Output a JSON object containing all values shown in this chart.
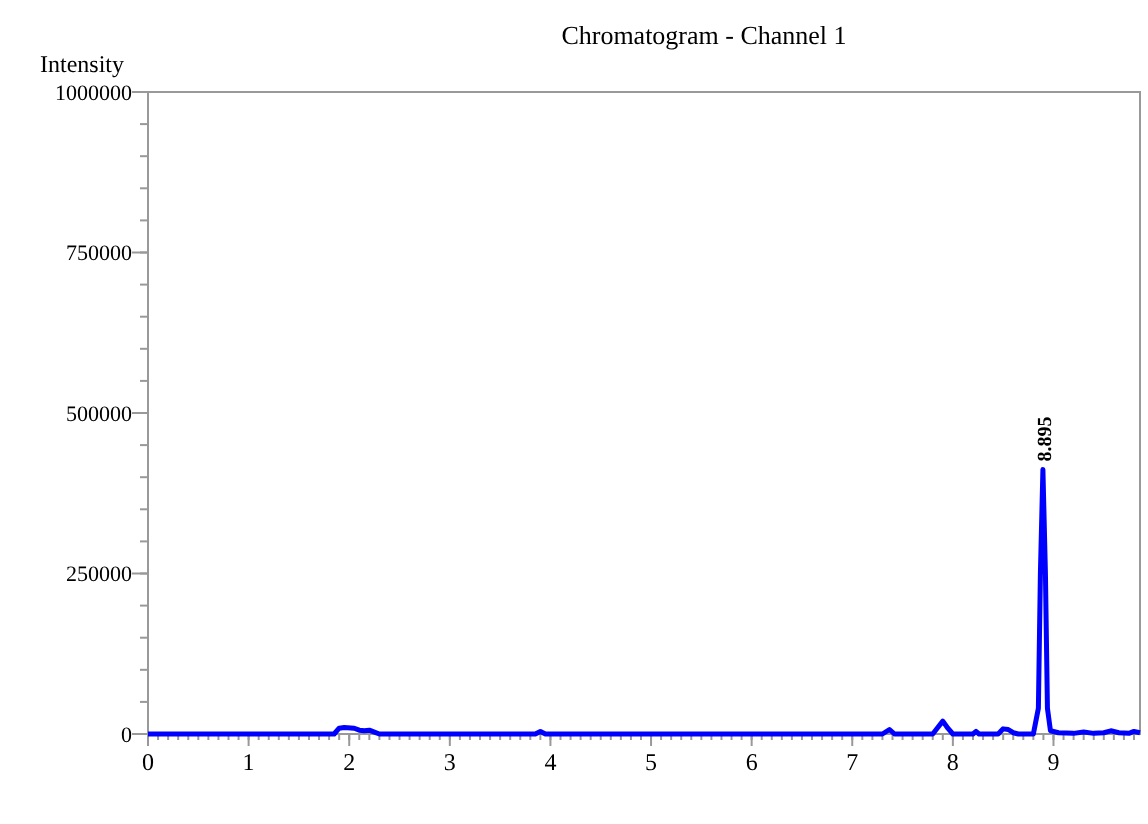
{
  "chart_data": {
    "type": "line",
    "title": "Chromatogram - Channel 1",
    "ylabel": "Intensity",
    "x": [
      0,
      0.5,
      1,
      1.5,
      1.85,
      1.9,
      1.95,
      2.05,
      2.1,
      2.15,
      2.2,
      2.25,
      2.3,
      3,
      3.85,
      3.9,
      3.95,
      4.5,
      5,
      6,
      7,
      7.3,
      7.37,
      7.42,
      7.6,
      7.8,
      7.85,
      7.9,
      7.95,
      8.0,
      8.2,
      8.23,
      8.26,
      8.45,
      8.5,
      8.55,
      8.6,
      8.65,
      8.8,
      8.85,
      8.87,
      8.895,
      8.92,
      8.94,
      8.97,
      9.05,
      9.2,
      9.3,
      9.4,
      9.5,
      9.57,
      9.65,
      9.75,
      9.8,
      9.86
    ],
    "series": [
      {
        "color": "#0000ff",
        "values": [
          0,
          0,
          0,
          0,
          0,
          9000,
          10000,
          9000,
          6000,
          5000,
          6000,
          3000,
          0,
          0,
          0,
          4000,
          0,
          0,
          0,
          0,
          0,
          0,
          7000,
          0,
          0,
          0,
          10000,
          20000,
          9000,
          0,
          0,
          4000,
          0,
          0,
          8000,
          7000,
          2000,
          0,
          0,
          40000,
          250000,
          412000,
          250000,
          40000,
          5000,
          2000,
          1000,
          3000,
          1000,
          2000,
          5000,
          2000,
          1000,
          4000,
          2000
        ]
      }
    ],
    "annotations": [
      {
        "text": "8.895",
        "x": 8.895,
        "y": 412000
      }
    ],
    "xlim": [
      0,
      9.86
    ],
    "xticks": [
      0,
      1,
      2,
      3,
      4,
      5,
      6,
      7,
      8,
      9
    ],
    "ylim": [
      0,
      1000000
    ],
    "yticks": [
      0,
      250000,
      500000,
      750000,
      1000000
    ],
    "grid": false,
    "marker": "none",
    "line_style": "solid"
  }
}
